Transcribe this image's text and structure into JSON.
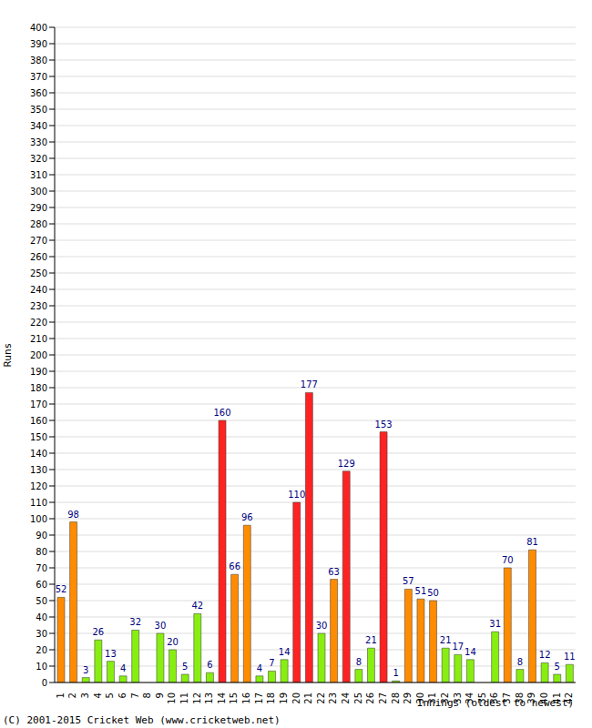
{
  "chart_data": {
    "type": "bar",
    "y_label": "Runs",
    "x_label": "Innings (oldest to newest)",
    "footer": "(C) 2001-2015 Cricket Web (www.cricketweb.net)",
    "categories": [
      "1",
      "2",
      "3",
      "4",
      "5",
      "6",
      "7",
      "8",
      "9",
      "10",
      "11",
      "12",
      "13",
      "14",
      "15",
      "16",
      "17",
      "18",
      "19",
      "20",
      "21",
      "22",
      "23",
      "24",
      "25",
      "26",
      "27",
      "28",
      "29",
      "30",
      "31",
      "32",
      "33",
      "34",
      "35",
      "36",
      "37",
      "38",
      "39",
      "40",
      "41",
      "42"
    ],
    "values": [
      52,
      98,
      3,
      26,
      13,
      4,
      32,
      0,
      30,
      20,
      5,
      42,
      6,
      160,
      66,
      96,
      4,
      7,
      14,
      110,
      177,
      30,
      63,
      129,
      8,
      21,
      153,
      1,
      57,
      51,
      50,
      21,
      17,
      14,
      0,
      31,
      70,
      8,
      81,
      12,
      5,
      11
    ],
    "colors": [
      "#ff8c00",
      "#ff8c00",
      "#88ee11",
      "#88ee11",
      "#88ee11",
      "#88ee11",
      "#88ee11",
      "#88ee11",
      "#88ee11",
      "#88ee11",
      "#88ee11",
      "#88ee11",
      "#88ee11",
      "#ff2222",
      "#ff8c00",
      "#ff8c00",
      "#88ee11",
      "#88ee11",
      "#88ee11",
      "#ff2222",
      "#ff2222",
      "#88ee11",
      "#ff8c00",
      "#ff2222",
      "#88ee11",
      "#88ee11",
      "#ff2222",
      "#88ee11",
      "#ff8c00",
      "#ff8c00",
      "#ff8c00",
      "#88ee11",
      "#88ee11",
      "#88ee11",
      "#88ee11",
      "#88ee11",
      "#ff8c00",
      "#88ee11",
      "#ff8c00",
      "#88ee11",
      "#88ee11",
      "#88ee11"
    ],
    "ylim": [
      0,
      400
    ],
    "yticks": [
      0,
      10,
      20,
      30,
      40,
      50,
      60,
      70,
      80,
      90,
      100,
      110,
      120,
      130,
      140,
      150,
      160,
      170,
      180,
      190,
      200,
      210,
      220,
      230,
      240,
      250,
      260,
      270,
      280,
      290,
      300,
      310,
      320,
      330,
      340,
      350,
      360,
      370,
      380,
      390,
      400
    ],
    "grid": true,
    "data_labels": true
  }
}
